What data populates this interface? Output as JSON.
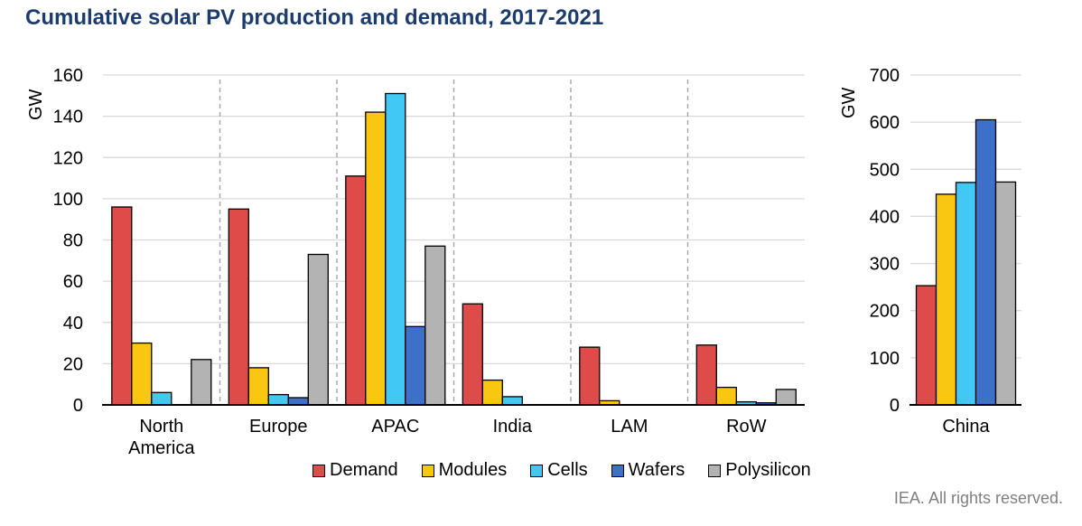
{
  "title": "Cumulative solar PV production and demand, 2017-2021",
  "footer": "IEA. All rights reserved.",
  "legend": [
    {
      "label": "Demand",
      "color": "#DF4B48"
    },
    {
      "label": "Modules",
      "color": "#F9C712"
    },
    {
      "label": "Cells",
      "color": "#41C8F4"
    },
    {
      "label": "Wafers",
      "color": "#3C70C9"
    },
    {
      "label": "Polysilicon",
      "color": "#B3B3B3"
    }
  ],
  "colors": {
    "title": "#1C3C6D",
    "grid": "#D9D9D9",
    "separator": "#A6A6A6",
    "axis": "#000000",
    "bar_border": "#000000",
    "footer_text": "#7F7F7F"
  },
  "chart_data": [
    {
      "type": "bar",
      "panel": "regions",
      "ylabel": "GW",
      "ylim": [
        0,
        160
      ],
      "ytick_step": 20,
      "grid": true,
      "separators": true,
      "legend_position": "bottom",
      "categories": [
        "North America",
        "Europe",
        "APAC",
        "India",
        "LAM",
        "RoW"
      ],
      "series": [
        {
          "name": "Demand",
          "color": "#DF4B48",
          "values": [
            96,
            95,
            111,
            49,
            28,
            29
          ]
        },
        {
          "name": "Modules",
          "color": "#F9C712",
          "values": [
            30,
            18,
            142,
            12,
            2,
            8.5
          ]
        },
        {
          "name": "Cells",
          "color": "#41C8F4",
          "values": [
            6,
            5,
            151,
            4,
            0,
            1.5
          ]
        },
        {
          "name": "Wafers",
          "color": "#3C70C9",
          "values": [
            0,
            3.5,
            38,
            0,
            0,
            1
          ]
        },
        {
          "name": "Polysilicon",
          "color": "#B3B3B3",
          "values": [
            22,
            73,
            77,
            0,
            0,
            7.5
          ]
        }
      ]
    },
    {
      "type": "bar",
      "panel": "china",
      "ylabel": "GW",
      "ylim": [
        0,
        700
      ],
      "ytick_step": 100,
      "grid": true,
      "separators": false,
      "categories": [
        "China"
      ],
      "series": [
        {
          "name": "Demand",
          "color": "#DF4B48",
          "values": [
            253
          ]
        },
        {
          "name": "Modules",
          "color": "#F9C712",
          "values": [
            447
          ]
        },
        {
          "name": "Cells",
          "color": "#41C8F4",
          "values": [
            472
          ]
        },
        {
          "name": "Wafers",
          "color": "#3C70C9",
          "values": [
            605
          ]
        },
        {
          "name": "Polysilicon",
          "color": "#B3B3B3",
          "values": [
            473
          ]
        }
      ]
    }
  ]
}
